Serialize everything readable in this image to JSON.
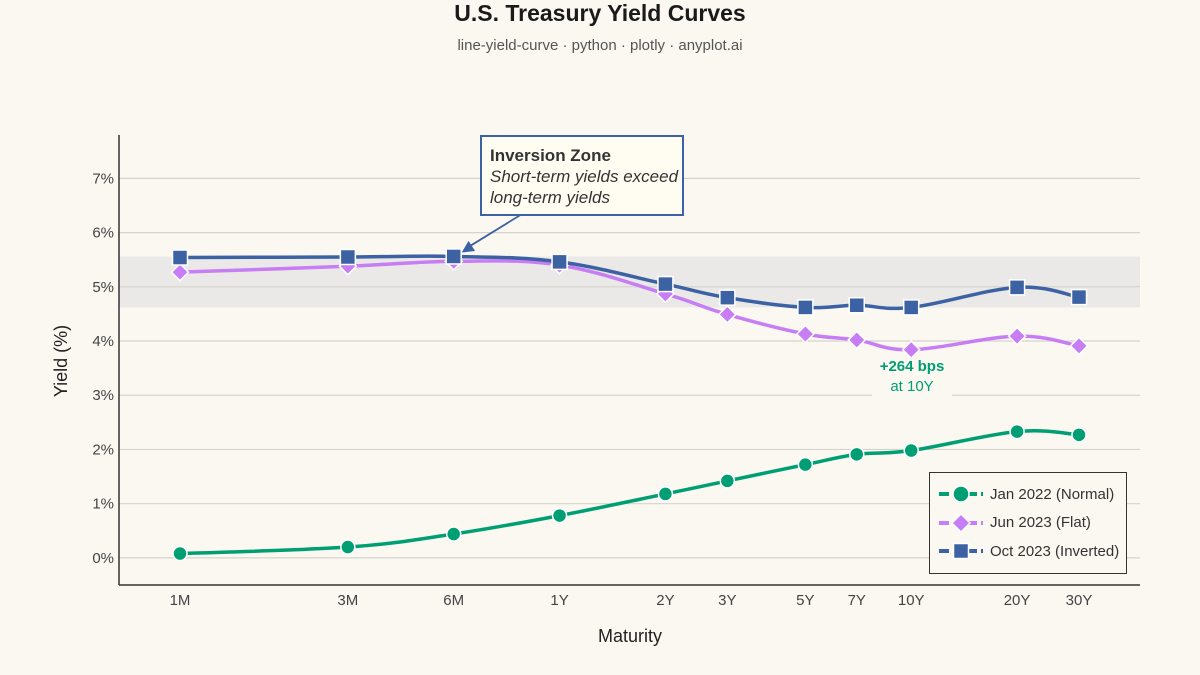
{
  "chart_data": {
    "type": "line",
    "title": "U.S. Treasury Yield Curves",
    "subtitle": "line-yield-curve · python · plotly · anyplot.ai",
    "xlabel": "Maturity",
    "ylabel": "Yield (%)",
    "x_tick_labels": [
      "1M",
      "3M",
      "6M",
      "1Y",
      "2Y",
      "3Y",
      "5Y",
      "7Y",
      "10Y",
      "20Y",
      "30Y"
    ],
    "x_scale": "log",
    "x_maturity_years": [
      0.0833,
      0.25,
      0.5,
      1,
      2,
      3,
      5,
      7,
      10,
      20,
      30
    ],
    "y_tick_labels": [
      "0%",
      "1%",
      "2%",
      "3%",
      "4%",
      "5%",
      "6%",
      "7%"
    ],
    "ylim": [
      -0.5,
      7.8
    ],
    "grid": true,
    "legend_position": "bottom-right",
    "series": [
      {
        "name": "Jan 2022 (Normal)",
        "color": "#009E73",
        "marker": "circle",
        "values": [
          0.08,
          0.2,
          0.44,
          0.78,
          1.18,
          1.42,
          1.72,
          1.91,
          1.98,
          2.33,
          2.27
        ]
      },
      {
        "name": "Jun 2023 (Flat)",
        "color": "#C77DF3",
        "marker": "diamond",
        "values": [
          5.27,
          5.38,
          5.47,
          5.4,
          4.87,
          4.49,
          4.13,
          4.02,
          3.84,
          4.09,
          3.91
        ]
      },
      {
        "name": "Oct 2023 (Inverted)",
        "color": "#3C62A3",
        "marker": "square",
        "values": [
          5.54,
          5.55,
          5.56,
          5.46,
          5.05,
          4.8,
          4.62,
          4.66,
          4.62,
          4.99,
          4.81
        ]
      }
    ],
    "shaded_band": {
      "y0": 4.62,
      "y1": 5.56,
      "color": "#E6E6E6"
    },
    "annotations": [
      {
        "id": "inversion",
        "title": "Inversion Zone",
        "line1": "Short-term yields exceed",
        "line2": "long-term yields",
        "arrow_target": {
          "x": "6M",
          "y": 5.56
        }
      },
      {
        "id": "spread",
        "value": "+264 bps",
        "label": "at 10Y"
      }
    ]
  }
}
